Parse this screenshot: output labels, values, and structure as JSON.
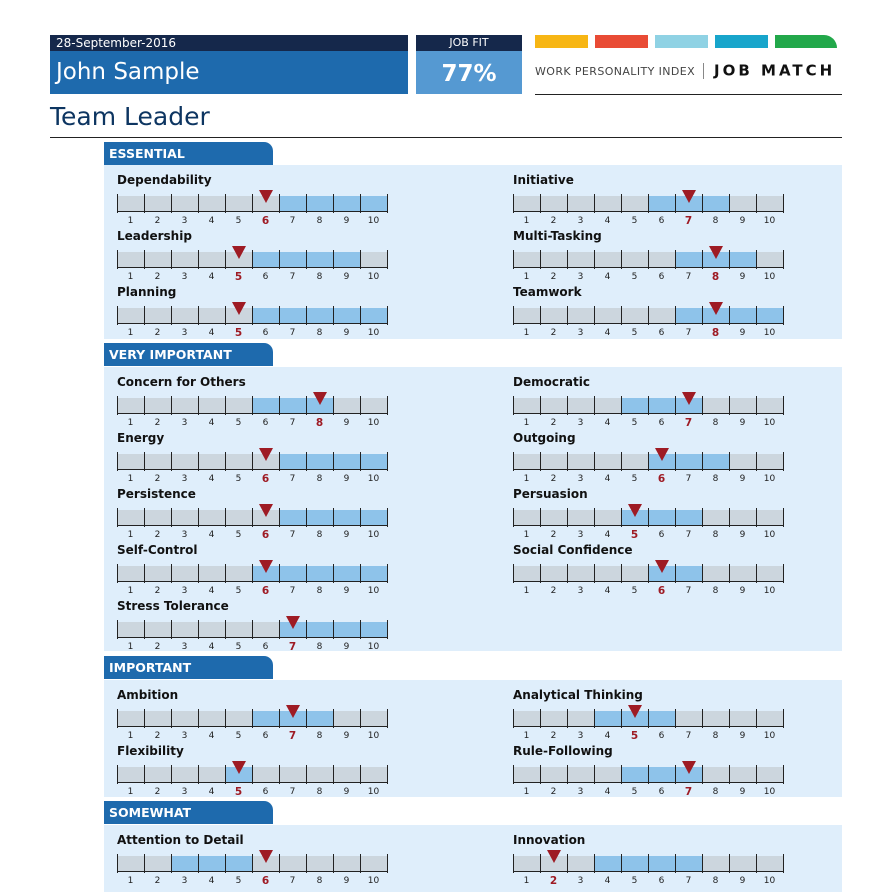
{
  "header": {
    "date": "28-September-2016",
    "name": "John Sample",
    "job_fit_label": "JOB FIT",
    "job_fit_value": "77%",
    "brand_wpi": "WORK PERSONALITY INDEX",
    "brand_job_match": "JOB MATCH",
    "brand_colors": [
      "#f7b614",
      "#e94b35",
      "#8fd2e4",
      "#18a5cb",
      "#22a84a"
    ]
  },
  "job_title": "Team Leader",
  "scale_numbers": [
    "1",
    "2",
    "3",
    "4",
    "5",
    "6",
    "7",
    "8",
    "9",
    "10"
  ],
  "colors": {
    "ideal_range": "#8ec3ea",
    "outside_range": "#ccd6de",
    "marker": "#9e1b24",
    "section_header": "#1e6aad",
    "section_background": "#dfeefb"
  },
  "sections": [
    {
      "name": "ESSENTIAL",
      "traits": [
        {
          "name": "Dependability",
          "score": 6,
          "ideal_from": 7,
          "ideal_to": 10
        },
        {
          "name": "Initiative",
          "score": 7,
          "ideal_from": 6,
          "ideal_to": 8
        },
        {
          "name": "Leadership",
          "score": 5,
          "ideal_from": 6,
          "ideal_to": 9
        },
        {
          "name": "Multi-Tasking",
          "score": 8,
          "ideal_from": 7,
          "ideal_to": 9
        },
        {
          "name": "Planning",
          "score": 5,
          "ideal_from": 6,
          "ideal_to": 10
        },
        {
          "name": "Teamwork",
          "score": 8,
          "ideal_from": 7,
          "ideal_to": 10
        }
      ]
    },
    {
      "name": "VERY IMPORTANT",
      "traits": [
        {
          "name": "Concern for Others",
          "score": 8,
          "ideal_from": 6,
          "ideal_to": 8
        },
        {
          "name": "Democratic",
          "score": 7,
          "ideal_from": 5,
          "ideal_to": 7
        },
        {
          "name": "Energy",
          "score": 6,
          "ideal_from": 7,
          "ideal_to": 10
        },
        {
          "name": "Outgoing",
          "score": 6,
          "ideal_from": 6,
          "ideal_to": 8
        },
        {
          "name": "Persistence",
          "score": 6,
          "ideal_from": 7,
          "ideal_to": 10
        },
        {
          "name": "Persuasion",
          "score": 5,
          "ideal_from": 5,
          "ideal_to": 7
        },
        {
          "name": "Self-Control",
          "score": 6,
          "ideal_from": 6,
          "ideal_to": 10
        },
        {
          "name": "Social Confidence",
          "score": 6,
          "ideal_from": 6,
          "ideal_to": 7
        },
        {
          "name": "Stress Tolerance",
          "score": 7,
          "ideal_from": 7,
          "ideal_to": 10
        }
      ]
    },
    {
      "name": "IMPORTANT",
      "traits": [
        {
          "name": "Ambition",
          "score": 7,
          "ideal_from": 6,
          "ideal_to": 8
        },
        {
          "name": "Analytical Thinking",
          "score": 5,
          "ideal_from": 4,
          "ideal_to": 6
        },
        {
          "name": "Flexibility",
          "score": 5,
          "ideal_from": 5,
          "ideal_to": 5
        },
        {
          "name": "Rule-Following",
          "score": 7,
          "ideal_from": 5,
          "ideal_to": 7
        }
      ]
    },
    {
      "name": "SOMEWHAT IMPORTANT",
      "traits": [
        {
          "name": "Attention to Detail",
          "score": 6,
          "ideal_from": 3,
          "ideal_to": 5
        },
        {
          "name": "Innovation",
          "score": 2,
          "ideal_from": 4,
          "ideal_to": 7
        }
      ]
    }
  ]
}
